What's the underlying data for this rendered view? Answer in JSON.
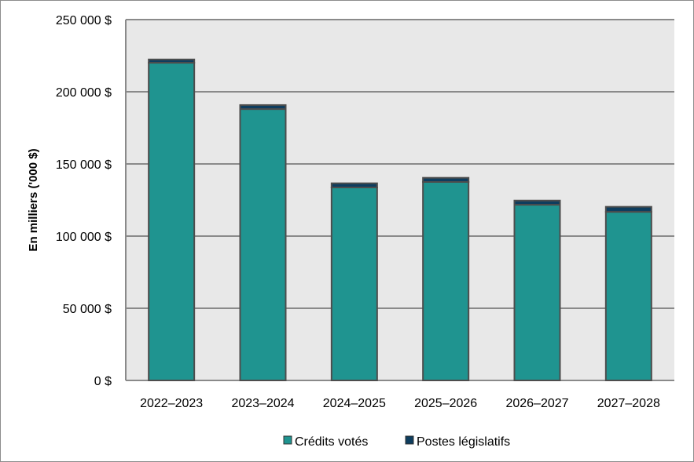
{
  "chart_data": {
    "type": "bar",
    "stacked": true,
    "title": "",
    "xlabel": "",
    "ylabel": "En milliers ('000 $)",
    "ylim": [
      0,
      250000
    ],
    "yticks": [
      0,
      50000,
      100000,
      150000,
      200000,
      250000
    ],
    "ytick_labels": [
      "0 $",
      "50 000 $",
      "100 000 $",
      "150 000 $",
      "200 000 $",
      "250 000 $"
    ],
    "grid": true,
    "legend_position": "bottom",
    "categories": [
      "2022–2023",
      "2023–2024",
      "2024–2025",
      "2025–2026",
      "2026–2027",
      "2027–2028"
    ],
    "series": [
      {
        "name": "Crédits votés",
        "color": "#1f9490",
        "values": [
          220100,
          188000,
          133700,
          137500,
          121700,
          116800
        ]
      },
      {
        "name": "Postes législatifs",
        "color": "#0e3d5e",
        "values": [
          2300,
          2800,
          2900,
          2900,
          2900,
          3500
        ]
      }
    ],
    "colors": {
      "plot_background": "#e8e8e8",
      "gridline": "#8a8a8a",
      "bar_outline": "#4d4d4d"
    }
  }
}
